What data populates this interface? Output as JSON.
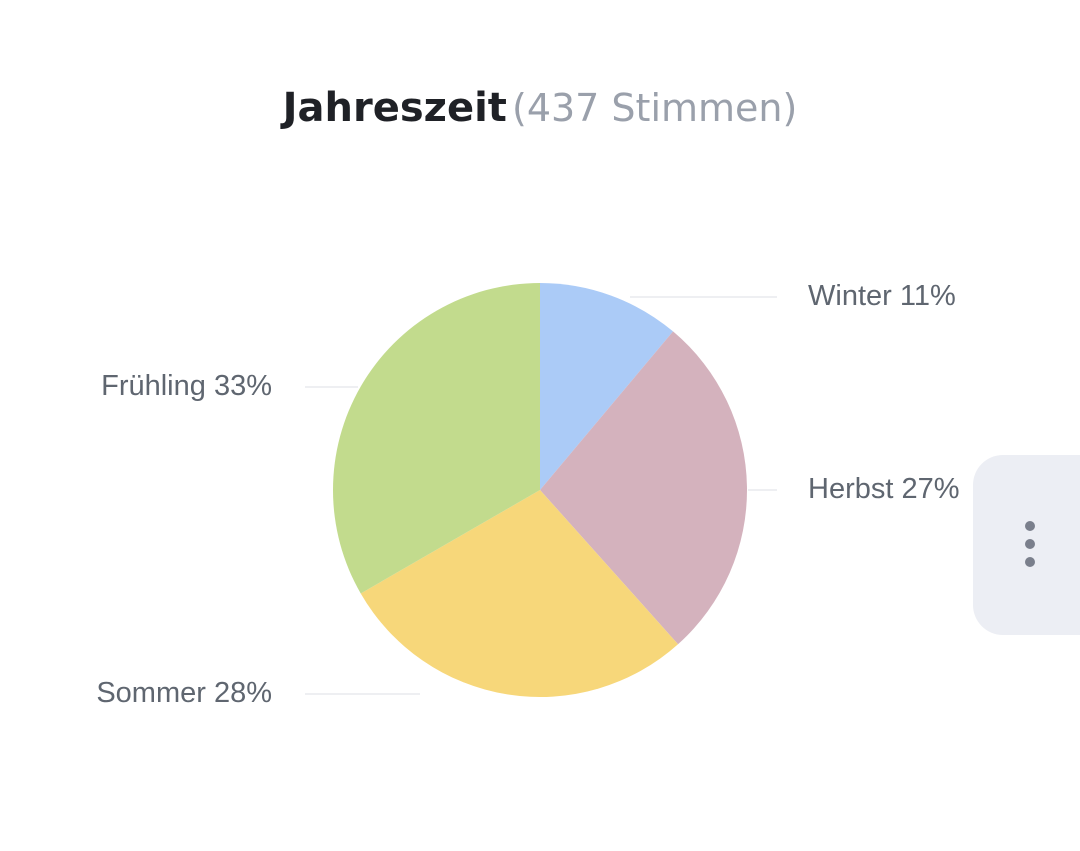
{
  "chart_data": {
    "type": "pie",
    "title": "Jahreszeit",
    "subtitle": "(437 Stimmen)",
    "categories": [
      "Winter",
      "Herbst",
      "Sommer",
      "Frühling"
    ],
    "values": [
      11,
      27,
      28,
      33
    ],
    "value_labels": [
      "11%",
      "27%",
      "28%",
      "33%"
    ],
    "colors": [
      "#abcbf7",
      "#d4b2bd",
      "#f7d77a",
      "#c2db8d"
    ]
  }
}
